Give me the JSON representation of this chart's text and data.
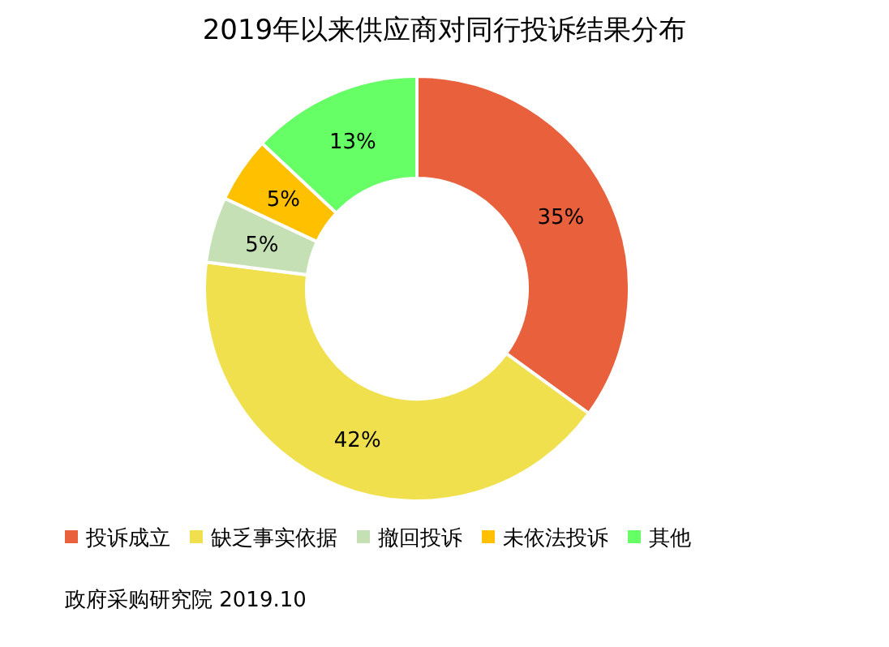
{
  "chart_data": {
    "type": "donut",
    "title": "2019年以来供应商对同行投诉结果分布",
    "categories": [
      "投诉成立",
      "缺乏事实依据",
      "撤回投诉",
      "未依法投诉",
      "其他"
    ],
    "values": [
      35,
      42,
      5,
      5,
      13
    ],
    "colors": [
      "#e8603c",
      "#f0e04e",
      "#c5e0b4",
      "#ffc000",
      "#66ff66"
    ],
    "value_labels": [
      "35%",
      "42%",
      "5%",
      "5%",
      "13%"
    ],
    "legend": "bottom",
    "annotations": [
      "政府采购研究院 2019.10"
    ]
  }
}
